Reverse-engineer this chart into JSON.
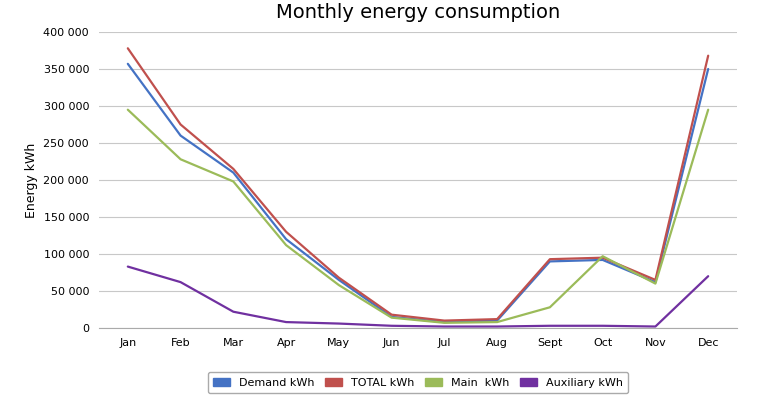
{
  "title": "Monthly energy consumption",
  "ylabel": "Energy kWh",
  "months": [
    "Jan",
    "Feb",
    "Mar",
    "Apr",
    "May",
    "Jun",
    "Jul",
    "Aug",
    "Sept",
    "Oct",
    "Nov",
    "Dec"
  ],
  "series": {
    "Demand kWh": [
      357000,
      260000,
      210000,
      120000,
      65000,
      15000,
      8000,
      10000,
      90000,
      92000,
      62000,
      350000
    ],
    "TOTAL kWh": [
      378000,
      275000,
      215000,
      130000,
      68000,
      18000,
      10000,
      12000,
      93000,
      95000,
      65000,
      368000
    ],
    "Main  kWh": [
      295000,
      228000,
      198000,
      112000,
      58000,
      14000,
      7000,
      8000,
      28000,
      97000,
      60000,
      295000
    ],
    "Auxiliary kWh": [
      83000,
      62000,
      22000,
      8000,
      6000,
      3000,
      2000,
      2000,
      3000,
      3000,
      2000,
      70000
    ]
  },
  "colors": {
    "Demand kWh": "#4472C4",
    "TOTAL kWh": "#C0504D",
    "Main  kWh": "#9BBB59",
    "Auxiliary kWh": "#7030A0"
  },
  "ylim": [
    0,
    400000
  ],
  "yticks": [
    0,
    50000,
    100000,
    150000,
    200000,
    250000,
    300000,
    350000,
    400000
  ],
  "background_color": "#FFFFFF",
  "grid_color": "#C8C8C8",
  "title_fontsize": 14,
  "axis_label_fontsize": 9,
  "tick_fontsize": 8,
  "legend_fontsize": 8
}
